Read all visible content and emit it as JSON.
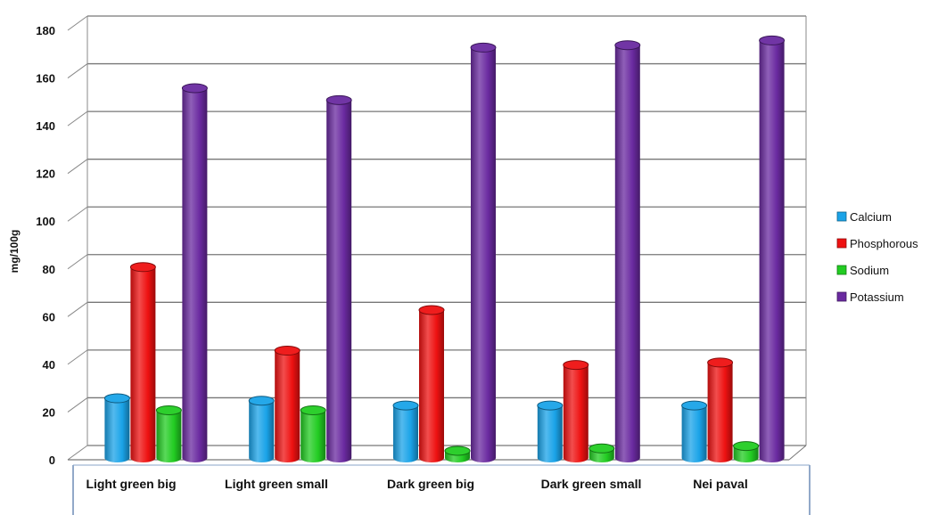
{
  "chart_data": {
    "type": "bar",
    "style": "3d-cylinder",
    "ylabel": "mg/100g",
    "xlabel": "",
    "ylim": [
      0,
      180
    ],
    "yticks": [
      0,
      20,
      40,
      60,
      80,
      100,
      120,
      140,
      160,
      180
    ],
    "grid": true,
    "legend_position": "right",
    "categories": [
      "Light green big",
      "Light green small",
      "Dark green big",
      "Dark green small",
      "Nei paval"
    ],
    "series": [
      {
        "name": "Calcium",
        "color": "#1aa3e8",
        "values": [
          25,
          24,
          22,
          22,
          22
        ]
      },
      {
        "name": "Phosphorous",
        "color": "#ee1111",
        "values": [
          80,
          45,
          62,
          39,
          40
        ]
      },
      {
        "name": "Sodium",
        "color": "#22cc22",
        "values": [
          20,
          20,
          3,
          4,
          5
        ]
      },
      {
        "name": "Potassium",
        "color": "#6a2aa0",
        "values": [
          155,
          150,
          172,
          173,
          175
        ]
      }
    ]
  }
}
